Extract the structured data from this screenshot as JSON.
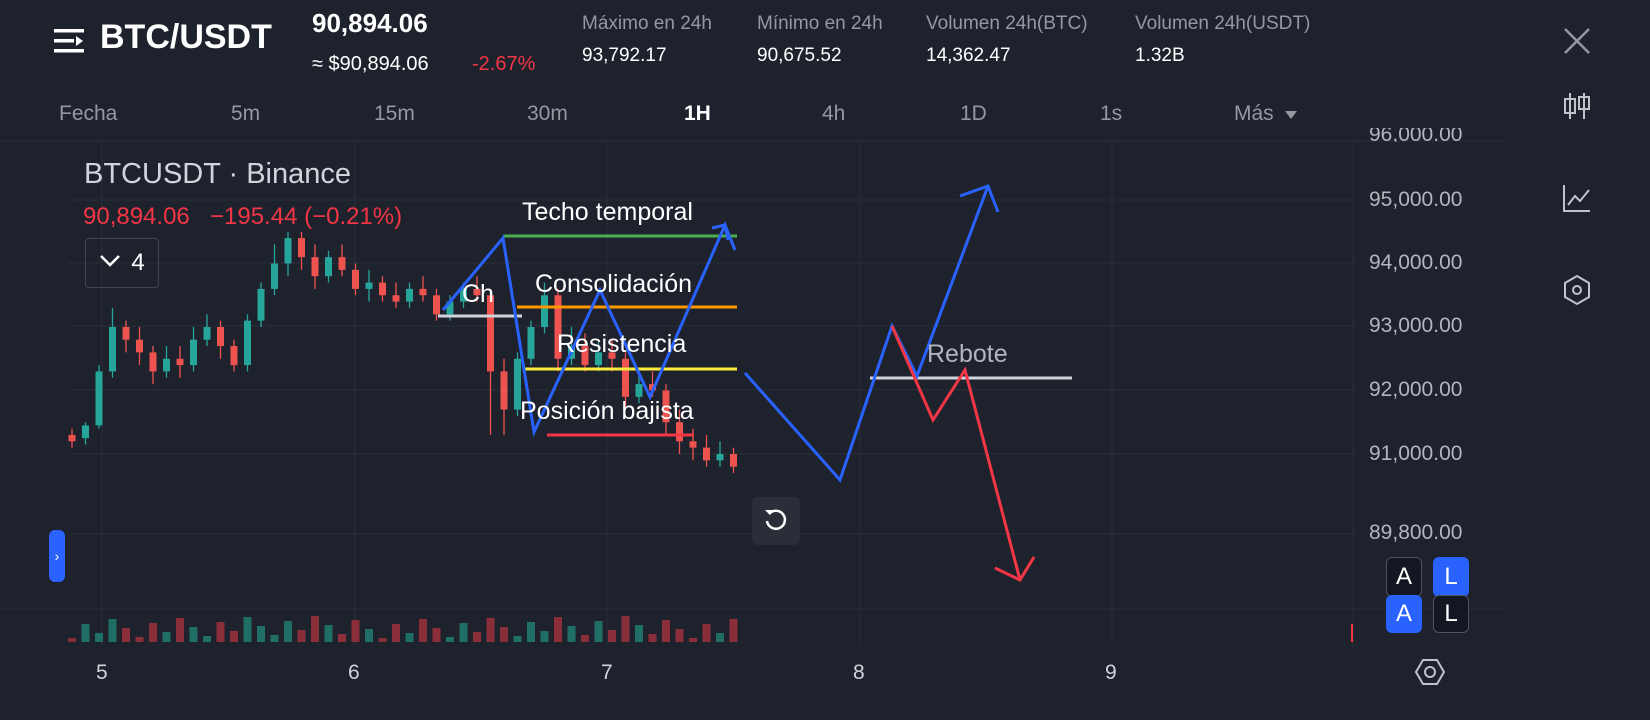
{
  "header": {
    "pair": "BTC/USDT",
    "price": "90,894.06",
    "fiat_price": "≈ $90,894.06",
    "change_pct": "-2.67%",
    "stats": [
      {
        "label": "Máximo en 24h",
        "value": "93,792.17"
      },
      {
        "label": "Mínimo en 24h",
        "value": "90,675.52"
      },
      {
        "label": "Volumen 24h(BTC)",
        "value": "14,362.47"
      },
      {
        "label": "Volumen 24h(USDT)",
        "value": "1.32B"
      }
    ]
  },
  "timeframes": [
    "Fecha",
    "5m",
    "15m",
    "30m",
    "1H",
    "4h",
    "1D",
    "1s",
    "Más"
  ],
  "active_timeframe": "1H",
  "chart": {
    "symbol_title": "BTCUSDT · Binance",
    "last_price": "90,894.06",
    "change": "−195.44 (−0.21%)",
    "indicator_count": "4",
    "y_ticks": [
      "95,000.00",
      "94,000.00",
      "93,000.00",
      "92,000.00",
      "91,000.00",
      "89,800.00"
    ],
    "y_tick_partial": "96,000.00",
    "x_ticks": [
      "5",
      "6",
      "7",
      "8",
      "9"
    ],
    "annotations": {
      "techo": "Techo temporal",
      "consolidacion": "Consolidación",
      "resistencia": "Resistencia",
      "posicion": "Posición bajista",
      "rebote": "Rebote",
      "ch": "Ch"
    },
    "scale_buttons": {
      "a": "A",
      "l": "L"
    },
    "colors": {
      "up": "#26a69a",
      "down": "#ef5350",
      "blue": "#2962ff",
      "red": "#f23645",
      "green_line": "#4caf50",
      "orange_line": "#ff9800",
      "yellow_line": "#ffeb3b"
    }
  },
  "side_icons": [
    "close-icon",
    "candlestick-icon",
    "line-chart-icon",
    "indicator-icon",
    "settings-icon"
  ]
}
